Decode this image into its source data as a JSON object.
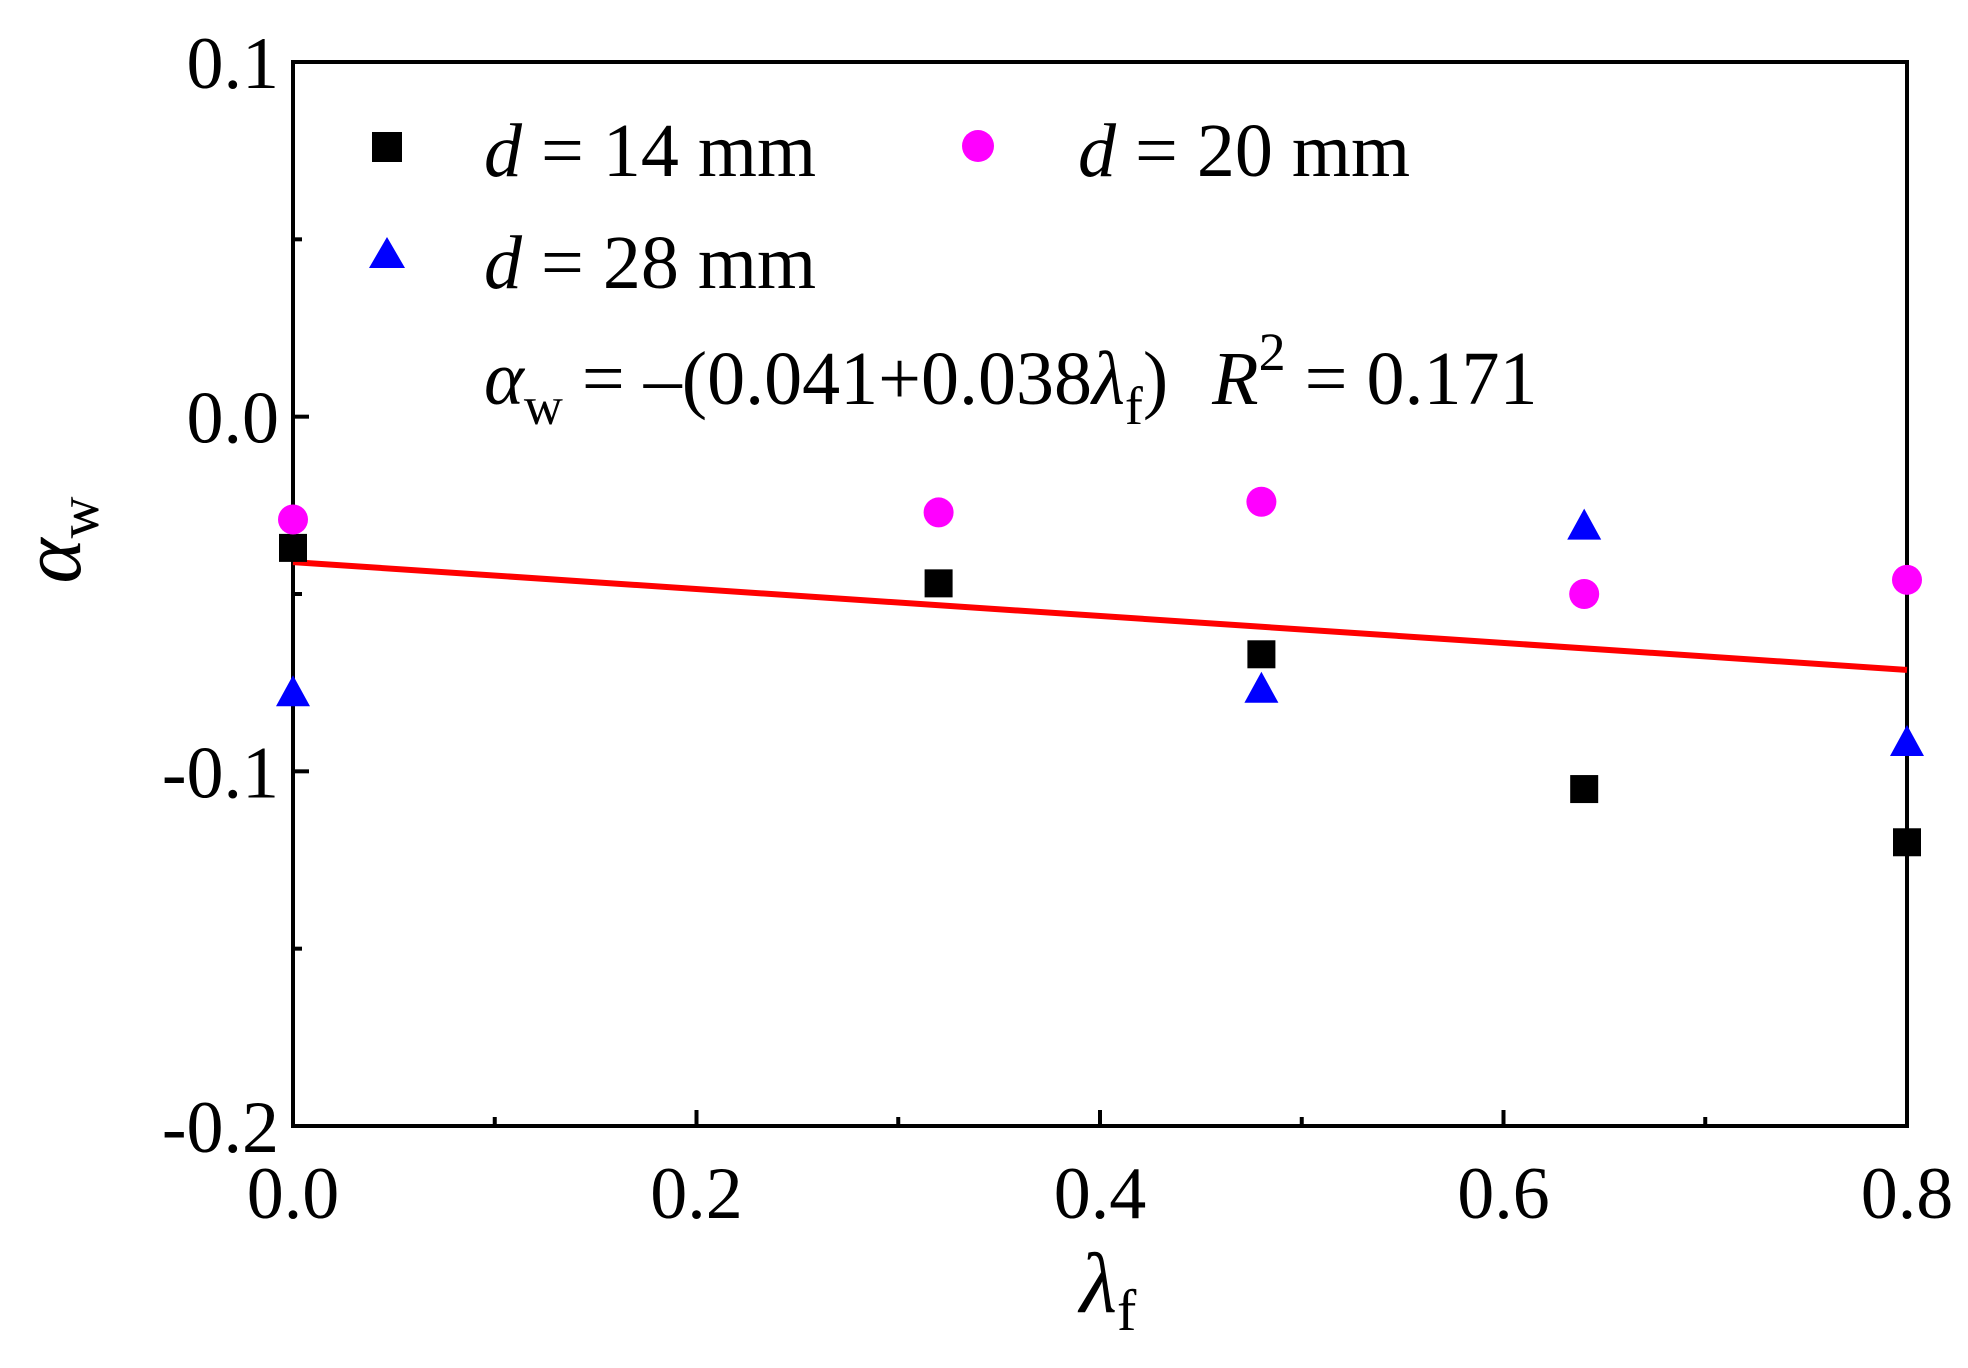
{
  "chart_data": {
    "type": "scatter",
    "title": "",
    "xlabel": {
      "symbol": "λ",
      "subscript": "f"
    },
    "ylabel": {
      "symbol": "α",
      "subscript": "w"
    },
    "xlim": [
      0.0,
      0.8
    ],
    "ylim": [
      -0.2,
      0.1
    ],
    "x_major_ticks": [
      0.0,
      0.2,
      0.4,
      0.6,
      0.8
    ],
    "x_tick_labels": [
      "0.0",
      "0.2",
      "0.4",
      "0.6",
      "0.8"
    ],
    "x_minor_ticks": [
      0.1,
      0.3,
      0.5,
      0.7
    ],
    "y_major_ticks": [
      -0.2,
      -0.1,
      0.0,
      0.1
    ],
    "y_tick_labels": [
      "-0.2",
      "-0.1",
      "0.0",
      "0.1"
    ],
    "y_minor_ticks": [
      -0.15,
      -0.05,
      0.05
    ],
    "grid": false,
    "legend_position": "top-left",
    "series": [
      {
        "name": "d = 14 mm",
        "legend_var": "d",
        "legend_rest": " = 14 mm",
        "marker": "square",
        "color": "#000000",
        "x": [
          0.0,
          0.32,
          0.48,
          0.64,
          0.8
        ],
        "y": [
          -0.037,
          -0.047,
          -0.067,
          -0.105,
          -0.12
        ]
      },
      {
        "name": "d = 20 mm",
        "legend_var": "d",
        "legend_rest": " = 20 mm",
        "marker": "circle",
        "color": "#ff00ff",
        "x": [
          0.0,
          0.32,
          0.48,
          0.64,
          0.8
        ],
        "y": [
          -0.029,
          -0.027,
          -0.024,
          -0.05,
          -0.046
        ]
      },
      {
        "name": "d = 28 mm",
        "legend_var": "d",
        "legend_rest": " = 28 mm",
        "marker": "triangle",
        "color": "#0000ff",
        "x": [
          0.0,
          0.32,
          0.48,
          0.64,
          0.8
        ],
        "y": [
          -0.078,
          null,
          -0.077,
          -0.031,
          -0.092
        ]
      }
    ],
    "fit_line": {
      "color": "#ff0000",
      "intercept": -0.041,
      "slope": -0.038,
      "x_range": [
        0.0,
        0.8
      ]
    },
    "annotation": {
      "lhs_symbol": "α",
      "lhs_sub": "w",
      "eq_body": " = –(0.041+0.038",
      "lambda_symbol": "λ",
      "lambda_sub": "f",
      "eq_close": ")",
      "r_symbol": "R",
      "r_power": "2",
      "r_value": " = 0.171"
    }
  }
}
